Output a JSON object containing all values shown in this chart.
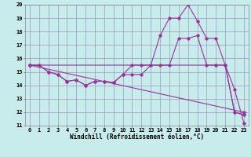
{
  "xlabel": "Windchill (Refroidissement éolien,°C)",
  "background_color": "#c8ecec",
  "line_color": "#993399",
  "grid_color": "#9999bb",
  "xlim": [
    -0.5,
    23.5
  ],
  "ylim": [
    11,
    20
  ],
  "yticks": [
    11,
    12,
    13,
    14,
    15,
    16,
    17,
    18,
    19,
    20
  ],
  "xticks": [
    0,
    1,
    2,
    3,
    4,
    5,
    6,
    7,
    8,
    9,
    10,
    11,
    12,
    13,
    14,
    15,
    16,
    17,
    18,
    19,
    20,
    21,
    22,
    23
  ],
  "series": [
    {
      "x": [
        0,
        1,
        2,
        3,
        4,
        5,
        6,
        7,
        8,
        9,
        10,
        11,
        12,
        13,
        14,
        15,
        16,
        17,
        18,
        19,
        20,
        21,
        22,
        23
      ],
      "y": [
        15.5,
        15.5,
        15.0,
        14.8,
        14.3,
        14.4,
        14.0,
        14.3,
        14.3,
        14.2,
        14.8,
        14.8,
        14.8,
        15.5,
        17.7,
        19.0,
        19.0,
        20.0,
        18.8,
        17.5,
        17.5,
        15.5,
        13.7,
        11.2
      ]
    },
    {
      "x": [
        0,
        1,
        2,
        3,
        4,
        5,
        6,
        7,
        8,
        9,
        10,
        11,
        12,
        13,
        14,
        15,
        16,
        17,
        18,
        19,
        20,
        21,
        22,
        23
      ],
      "y": [
        15.5,
        15.5,
        15.0,
        14.8,
        14.3,
        14.4,
        14.0,
        14.3,
        14.3,
        14.2,
        14.8,
        15.5,
        15.5,
        15.5,
        15.5,
        15.5,
        17.5,
        17.5,
        17.7,
        15.5,
        15.5,
        15.5,
        12.0,
        11.8
      ]
    },
    {
      "x": [
        0,
        23
      ],
      "y": [
        15.5,
        12.0
      ]
    },
    {
      "x": [
        0,
        20,
        21,
        22,
        23
      ],
      "y": [
        15.5,
        15.5,
        15.5,
        12.0,
        11.8
      ]
    }
  ],
  "axis_fontsize": 5.5,
  "tick_fontsize": 5.0,
  "xlabel_fontsize": 5.5
}
